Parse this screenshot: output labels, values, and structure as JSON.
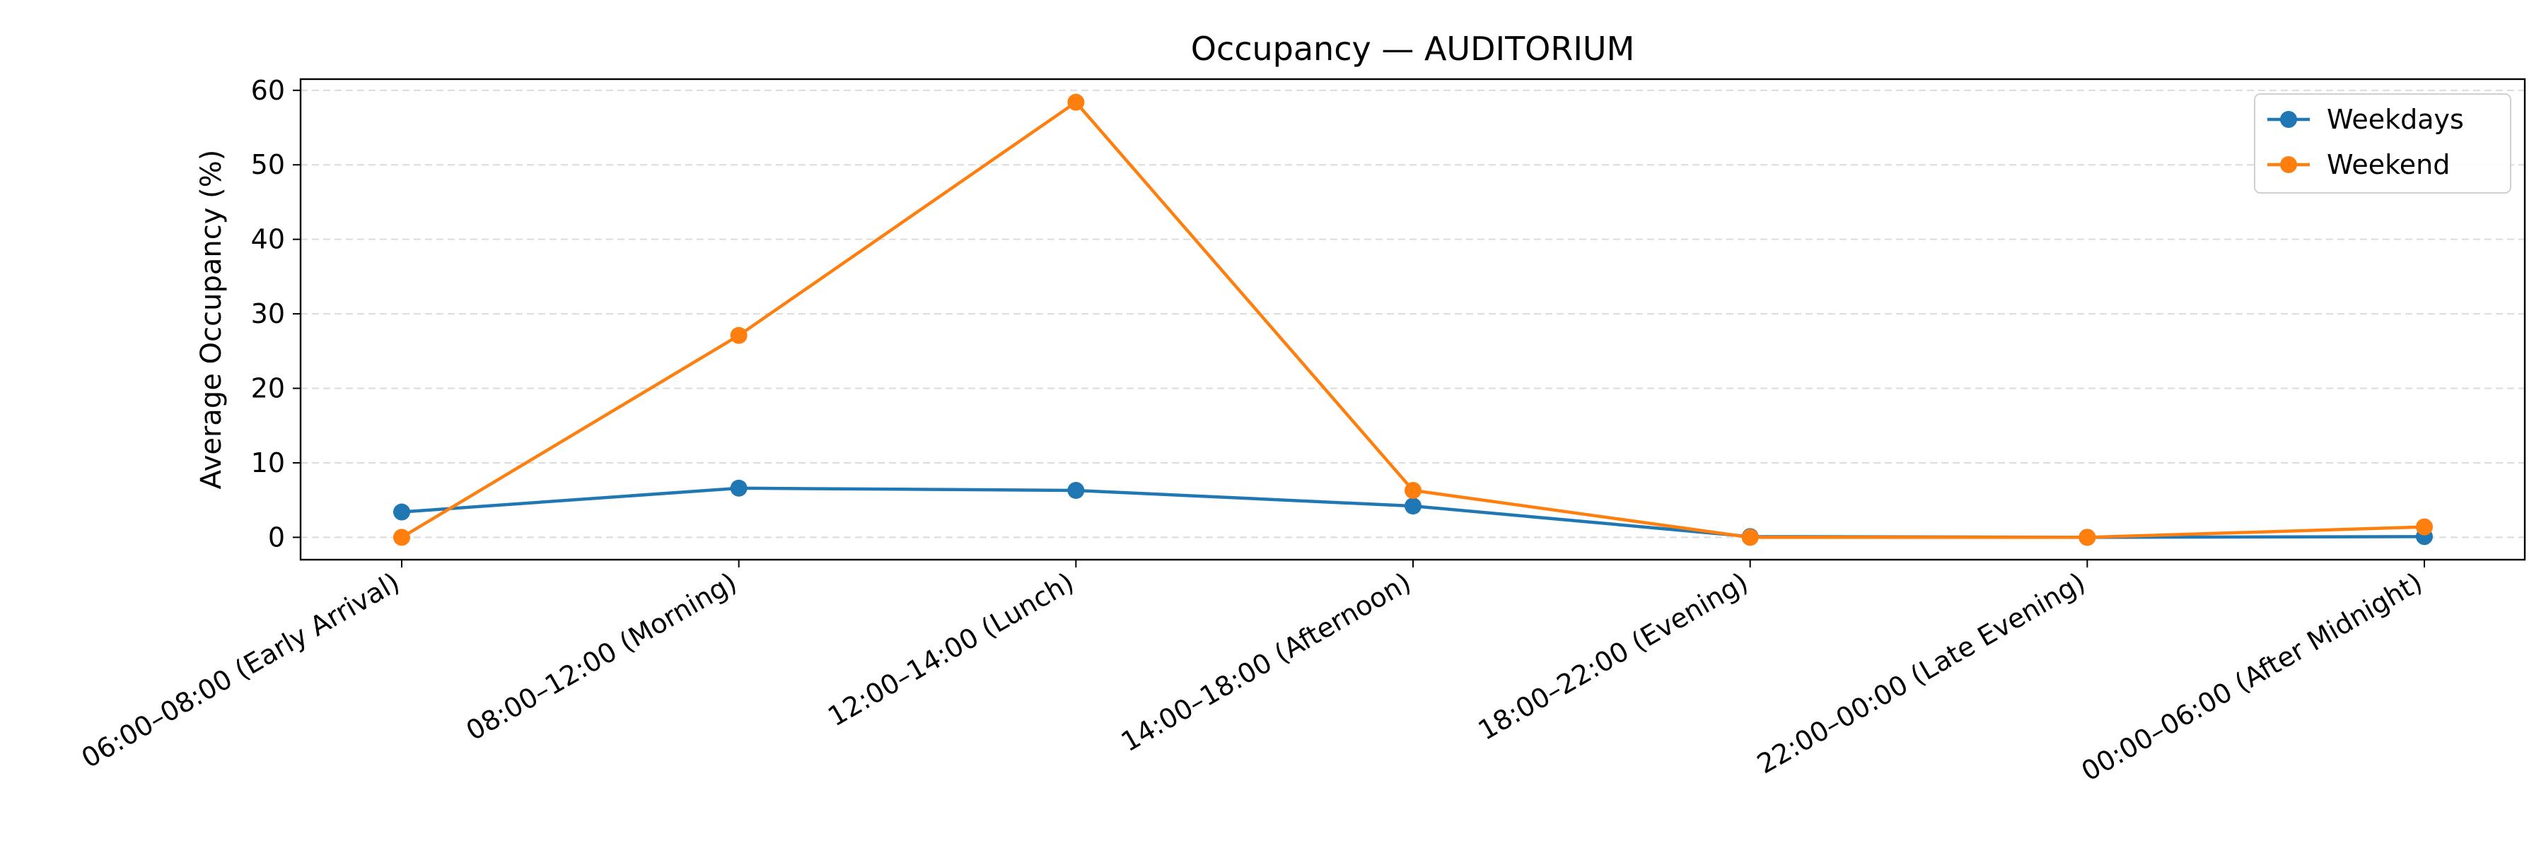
{
  "chart_data": {
    "type": "line",
    "title": "Occupancy — AUDITORIUM",
    "xlabel": "",
    "ylabel": "Average Occupancy (%)",
    "ylim": [
      -3,
      61.5
    ],
    "yticks": [
      0,
      10,
      20,
      30,
      40,
      50,
      60
    ],
    "grid": "horizontal dashed",
    "legend_position": "top-right",
    "categories": [
      "06:00–08:00 (Early Arrival)",
      "08:00–12:00 (Morning)",
      "12:00–14:00 (Lunch)",
      "14:00–18:00 (Afternoon)",
      "18:00–22:00 (Evening)",
      "22:00–00:00 (Late Evening)",
      "00:00–06:00 (After Midnight)"
    ],
    "series": [
      {
        "name": "Weekdays",
        "color": "#1f77b4",
        "values": [
          3.4,
          6.6,
          6.3,
          4.2,
          0.1,
          0.0,
          0.1
        ]
      },
      {
        "name": "Weekend",
        "color": "#ff7f0e",
        "values": [
          0.0,
          27.1,
          58.4,
          6.3,
          0.0,
          0.0,
          1.4
        ]
      }
    ]
  }
}
